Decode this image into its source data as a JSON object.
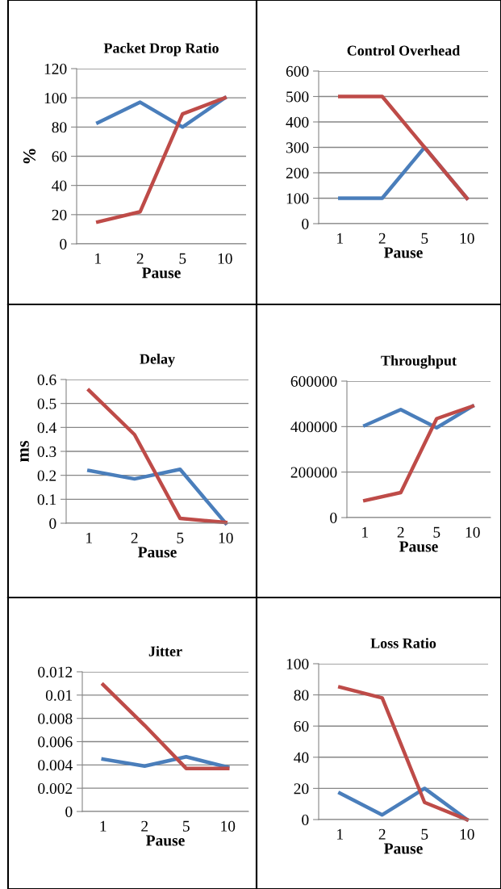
{
  "chart_data": [
    {
      "type": "line",
      "title": "Packet Drop Ratio",
      "ylabel": "%",
      "xlabel": "Pause",
      "categories": [
        "1",
        "2",
        "5",
        "10"
      ],
      "ylim": [
        0,
        120
      ],
      "yticks": [
        0,
        20,
        40,
        60,
        80,
        100,
        120
      ],
      "grid": "y",
      "legend": false,
      "marker": "none",
      "line_style": "solid",
      "series": [
        {
          "color": "#4a7ebb",
          "values": [
            83,
            97,
            80,
            100
          ]
        },
        {
          "color": "#be4b48",
          "values": [
            15,
            22,
            89,
            100
          ]
        }
      ]
    },
    {
      "type": "line",
      "title": "Control Overhead",
      "xlabel": "Pause",
      "categories": [
        "1",
        "2",
        "5",
        "10"
      ],
      "ylim": [
        0,
        600
      ],
      "yticks": [
        0,
        100,
        200,
        300,
        400,
        500,
        600
      ],
      "grid": "y",
      "legend": false,
      "marker": "none",
      "line_style": "solid",
      "series": [
        {
          "color": "#4a7ebb",
          "values": [
            100,
            100,
            300,
            100
          ]
        },
        {
          "color": "#be4b48",
          "values": [
            500,
            500,
            300,
            100
          ]
        }
      ]
    },
    {
      "type": "line",
      "title": "Delay",
      "ylabel": "ms",
      "xlabel": "Pause",
      "categories": [
        "1",
        "2",
        "5",
        "10"
      ],
      "ylim": [
        0,
        0.6
      ],
      "yticks": [
        0,
        0.1,
        0.2,
        0.3,
        0.4,
        0.5,
        0.6
      ],
      "grid": "y",
      "legend": false,
      "marker": "none",
      "line_style": "solid",
      "series": [
        {
          "color": "#4a7ebb",
          "values": [
            0.22,
            0.185,
            0.225,
            0
          ]
        },
        {
          "color": "#be4b48",
          "values": [
            0.555,
            0.37,
            0.02,
            0.003
          ]
        }
      ]
    },
    {
      "type": "line",
      "title": "Throughput",
      "xlabel": "Pause",
      "categories": [
        "1",
        "2",
        "5",
        "10"
      ],
      "ylim": [
        0,
        600000
      ],
      "yticks": [
        0,
        200000,
        400000,
        600000
      ],
      "grid": "y",
      "legend": false,
      "marker": "none",
      "line_style": "solid",
      "series": [
        {
          "color": "#4a7ebb",
          "values": [
            405000,
            475000,
            395000,
            490000
          ]
        },
        {
          "color": "#be4b48",
          "values": [
            75000,
            110000,
            435000,
            490000
          ]
        }
      ]
    },
    {
      "type": "line",
      "title": "Jitter",
      "xlabel": "Pause",
      "categories": [
        "1",
        "2",
        "5",
        "10"
      ],
      "ylim": [
        0,
        0.012
      ],
      "yticks": [
        0,
        0.002,
        0.004,
        0.006,
        0.008,
        0.01,
        0.012
      ],
      "grid": "y",
      "legend": false,
      "marker": "none",
      "line_style": "solid",
      "series": [
        {
          "color": "#4a7ebb",
          "values": [
            0.0045,
            0.0039,
            0.0047,
            0.0038
          ]
        },
        {
          "color": "#be4b48",
          "values": [
            0.0109,
            0.0074,
            0.0037,
            0.0037
          ]
        }
      ]
    },
    {
      "type": "line",
      "title": "Loss Ratio",
      "xlabel": "Pause",
      "categories": [
        "1",
        "2",
        "5",
        "10"
      ],
      "ylim": [
        0,
        100
      ],
      "yticks": [
        0,
        20,
        40,
        60,
        80,
        100
      ],
      "grid": "y",
      "legend": false,
      "marker": "none",
      "line_style": "solid",
      "series": [
        {
          "color": "#4a7ebb",
          "values": [
            17,
            3,
            20,
            0
          ]
        },
        {
          "color": "#be4b48",
          "values": [
            85,
            78,
            11,
            0
          ]
        }
      ]
    }
  ]
}
